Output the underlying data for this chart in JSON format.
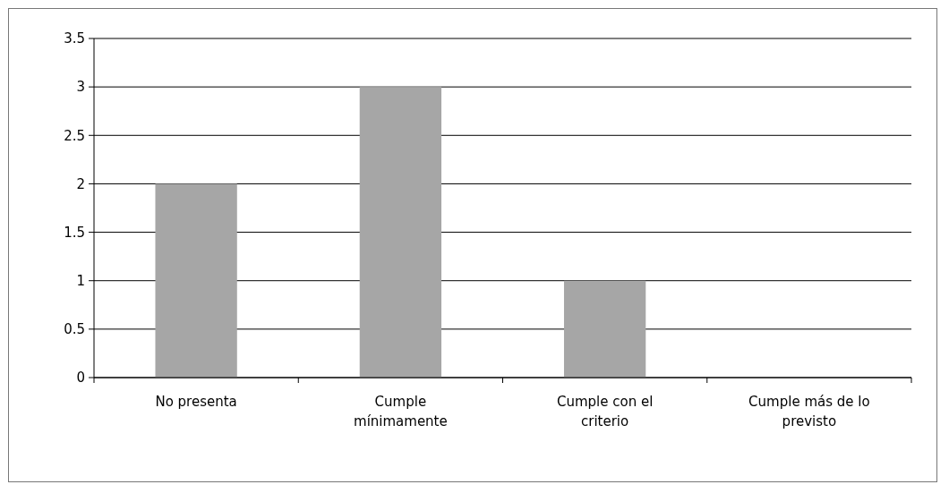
{
  "chart_data": {
    "type": "bar",
    "categories": [
      "No presenta",
      "Cumple mínimamente",
      "Cumple con el criterio",
      "Cumple más de lo previsto"
    ],
    "values": [
      2,
      3,
      1,
      0
    ],
    "color": "#a6a6a6",
    "ylim": [
      0,
      3.5
    ],
    "yticks": [
      0,
      0.5,
      1,
      1.5,
      2,
      2.5,
      3,
      3.5
    ],
    "grid": "y"
  }
}
